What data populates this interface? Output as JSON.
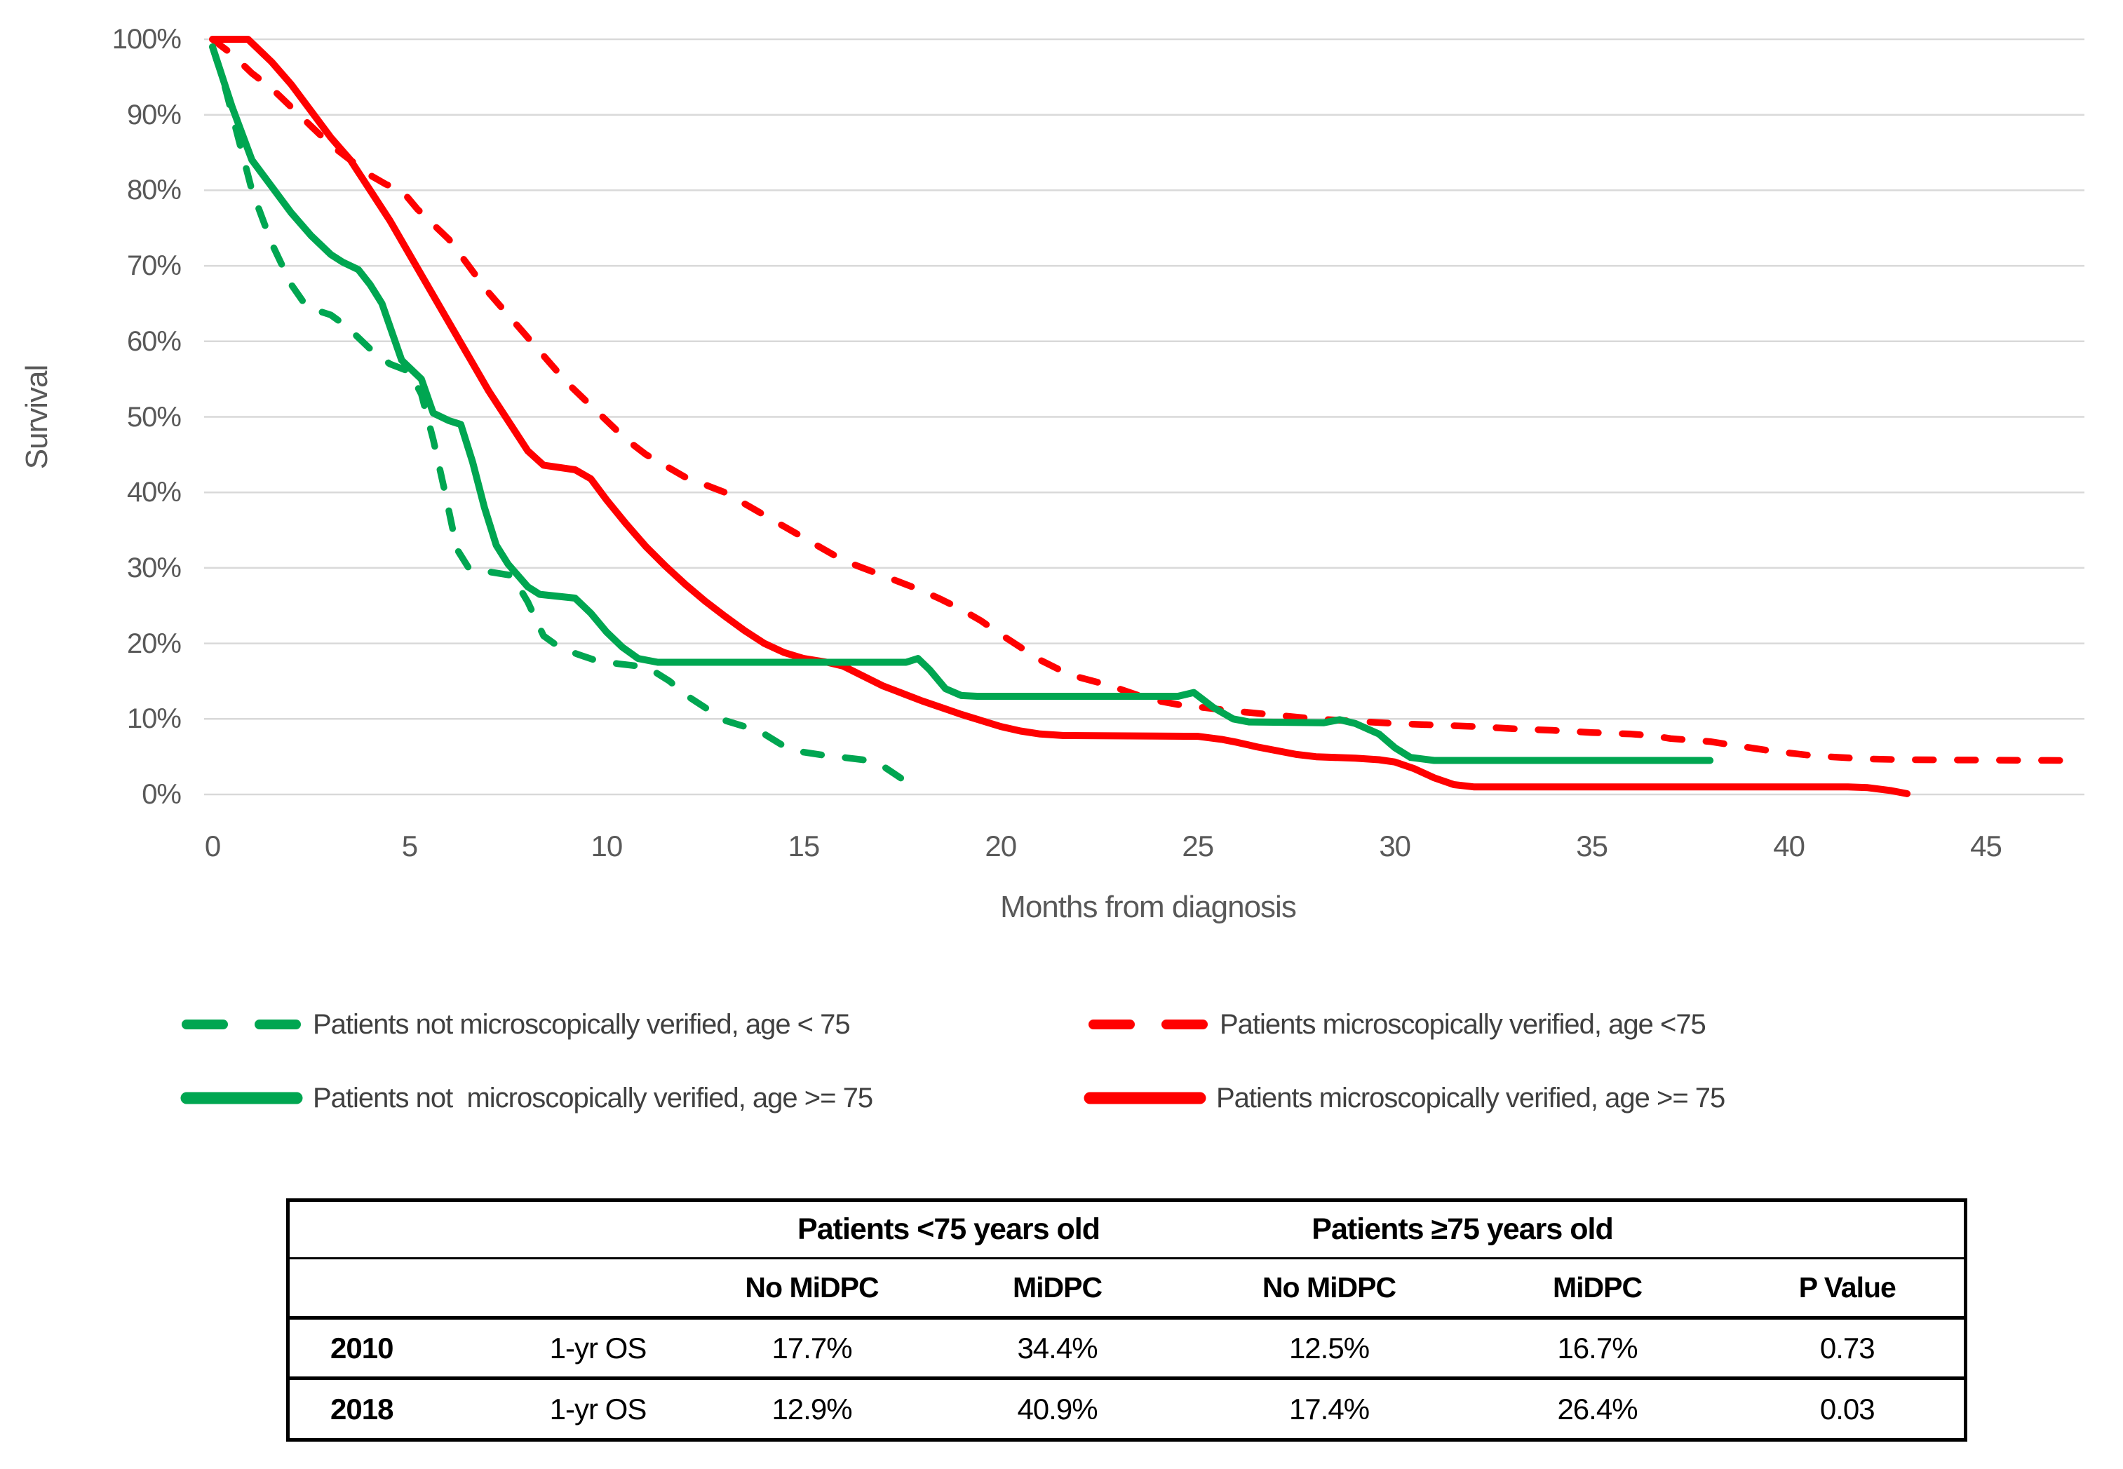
{
  "accent_colors": {
    "green": "#00A651",
    "red": "#FF0000",
    "grid": "#D9D9D9",
    "axis_text": "#595959",
    "legend_text": "#404040"
  },
  "chart_data": {
    "type": "line",
    "title": "",
    "xlabel": "Months from diagnosis",
    "ylabel": "Survival",
    "xlim": [
      0,
      47.5
    ],
    "ylim": [
      0,
      100
    ],
    "grid": true,
    "legend_position": "below",
    "xticks": [
      {
        "v": 0,
        "label": "0"
      },
      {
        "v": 5,
        "label": "5"
      },
      {
        "v": 10,
        "label": "10"
      },
      {
        "v": 15,
        "label": "15"
      },
      {
        "v": 20,
        "label": "20"
      },
      {
        "v": 25,
        "label": "25"
      },
      {
        "v": 30,
        "label": "30"
      },
      {
        "v": 35,
        "label": "35"
      },
      {
        "v": 40,
        "label": "40"
      },
      {
        "v": 45,
        "label": "45"
      }
    ],
    "yticks": [
      {
        "v": 0,
        "label": "0%"
      },
      {
        "v": 10,
        "label": "10%"
      },
      {
        "v": 20,
        "label": "20%"
      },
      {
        "v": 30,
        "label": "30%"
      },
      {
        "v": 40,
        "label": "40%"
      },
      {
        "v": 50,
        "label": "50%"
      },
      {
        "v": 60,
        "label": "60%"
      },
      {
        "v": 70,
        "label": "70%"
      },
      {
        "v": 80,
        "label": "80%"
      },
      {
        "v": 90,
        "label": "90%"
      },
      {
        "v": 100,
        "label": "100%"
      }
    ],
    "series": [
      {
        "key": "red-dashed",
        "name": "Patients microscopically verified, age <75",
        "color": "#FF0000",
        "dashed": true,
        "width": 9.5,
        "points": [
          [
            0,
            100
          ],
          [
            0.5,
            98
          ],
          [
            1,
            95.5
          ],
          [
            1.5,
            93.5
          ],
          [
            2,
            91
          ],
          [
            2.5,
            88.5
          ],
          [
            3,
            86
          ],
          [
            3.5,
            84
          ],
          [
            4,
            82
          ],
          [
            4.4,
            80.8
          ],
          [
            4.8,
            80
          ],
          [
            5.2,
            77.5
          ],
          [
            5.5,
            76
          ],
          [
            6,
            73.5
          ],
          [
            6.5,
            70
          ],
          [
            7,
            66.5
          ],
          [
            7.5,
            63.5
          ],
          [
            8,
            60.5
          ],
          [
            8.5,
            57.5
          ],
          [
            9,
            54.5
          ],
          [
            9.5,
            52
          ],
          [
            10,
            49.5
          ],
          [
            10.5,
            47
          ],
          [
            11,
            45
          ],
          [
            11.5,
            43.5
          ],
          [
            12,
            42
          ],
          [
            12.5,
            41
          ],
          [
            13,
            40
          ],
          [
            13.5,
            38.5
          ],
          [
            14,
            37
          ],
          [
            14.5,
            35.5
          ],
          [
            15,
            34
          ],
          [
            15.5,
            32.5
          ],
          [
            16,
            31
          ],
          [
            16.5,
            30
          ],
          [
            17,
            29
          ],
          [
            17.5,
            28
          ],
          [
            18,
            27
          ],
          [
            18.5,
            25.8
          ],
          [
            19,
            24.5
          ],
          [
            19.5,
            23
          ],
          [
            20,
            21.2
          ],
          [
            20.5,
            19.5
          ],
          [
            21,
            17.8
          ],
          [
            21.5,
            16.5
          ],
          [
            22,
            15.5
          ],
          [
            22.5,
            14.8
          ],
          [
            23,
            14
          ],
          [
            23.5,
            13.1
          ],
          [
            24,
            12.4
          ],
          [
            24.5,
            11.9
          ],
          [
            25,
            11.6
          ],
          [
            26,
            11
          ],
          [
            27,
            10.5
          ],
          [
            28,
            10
          ],
          [
            29,
            9.7
          ],
          [
            30,
            9.4
          ],
          [
            31,
            9.2
          ],
          [
            32,
            9
          ],
          [
            33,
            8.7
          ],
          [
            34,
            8.5
          ],
          [
            35,
            8.2
          ],
          [
            36,
            8
          ],
          [
            36.5,
            7.8
          ],
          [
            37,
            7.4
          ],
          [
            38,
            7
          ],
          [
            38.5,
            6.6
          ],
          [
            39,
            6.2
          ],
          [
            39.5,
            5.8
          ],
          [
            40,
            5.5
          ],
          [
            40.5,
            5.2
          ],
          [
            41,
            5
          ],
          [
            42,
            4.7
          ],
          [
            43,
            4.6
          ],
          [
            47,
            4.5
          ]
        ]
      },
      {
        "key": "green-dashed",
        "name": "Patients not microscopically verified, age < 75",
        "color": "#00A651",
        "dashed": true,
        "width": 9.5,
        "points": [
          [
            0,
            99
          ],
          [
            0.3,
            94
          ],
          [
            0.6,
            88
          ],
          [
            1,
            80
          ],
          [
            1.5,
            73
          ],
          [
            2,
            67.5
          ],
          [
            2.4,
            64.5
          ],
          [
            3,
            63.5
          ],
          [
            3.4,
            62
          ],
          [
            4,
            59
          ],
          [
            4.5,
            57
          ],
          [
            5,
            56
          ],
          [
            5.3,
            53
          ],
          [
            5.6,
            47
          ],
          [
            5.9,
            40
          ],
          [
            6.2,
            32.5
          ],
          [
            6.5,
            30
          ],
          [
            7,
            29.5
          ],
          [
            7.6,
            29
          ],
          [
            8,
            25.5
          ],
          [
            8.4,
            21
          ],
          [
            8.8,
            19.5
          ],
          [
            9.3,
            18.5
          ],
          [
            9.7,
            17.8
          ],
          [
            10.3,
            17.3
          ],
          [
            10.8,
            17
          ],
          [
            11.2,
            16.3
          ],
          [
            11.6,
            15
          ],
          [
            12,
            13.2
          ],
          [
            12.5,
            11.5
          ],
          [
            13,
            9.8
          ],
          [
            13.5,
            9
          ],
          [
            14,
            8
          ],
          [
            14.5,
            6.4
          ],
          [
            15,
            5.6
          ],
          [
            15.5,
            5.2
          ],
          [
            16,
            4.9
          ],
          [
            16.5,
            4.6
          ],
          [
            17,
            3.8
          ],
          [
            17.4,
            2.4
          ],
          [
            17.8,
            1
          ]
        ]
      },
      {
        "key": "red-solid",
        "name": "Patients microscopically verified, age >= 75",
        "color": "#FF0000",
        "dashed": false,
        "width": 10,
        "points": [
          [
            0,
            100
          ],
          [
            0.9,
            100
          ],
          [
            1.5,
            97
          ],
          [
            2,
            94
          ],
          [
            2.5,
            90.5
          ],
          [
            3,
            87
          ],
          [
            3.5,
            84
          ],
          [
            4,
            80
          ],
          [
            4.5,
            76
          ],
          [
            5,
            71.5
          ],
          [
            5.5,
            67
          ],
          [
            6,
            62.5
          ],
          [
            6.5,
            58
          ],
          [
            7,
            53.5
          ],
          [
            7.5,
            49.5
          ],
          [
            8,
            45.5
          ],
          [
            8.4,
            43.6
          ],
          [
            9.2,
            43
          ],
          [
            9.6,
            41.8
          ],
          [
            10,
            39
          ],
          [
            10.5,
            35.8
          ],
          [
            11,
            32.8
          ],
          [
            11.5,
            30.2
          ],
          [
            12,
            27.8
          ],
          [
            12.5,
            25.6
          ],
          [
            13,
            23.6
          ],
          [
            13.5,
            21.7
          ],
          [
            14,
            20
          ],
          [
            14.5,
            18.8
          ],
          [
            15,
            18
          ],
          [
            15.6,
            17.5
          ],
          [
            16,
            17
          ],
          [
            16.5,
            15.7
          ],
          [
            17,
            14.4
          ],
          [
            17.5,
            13.4
          ],
          [
            18,
            12.4
          ],
          [
            18.5,
            11.5
          ],
          [
            19,
            10.6
          ],
          [
            19.5,
            9.8
          ],
          [
            20,
            9
          ],
          [
            20.5,
            8.4
          ],
          [
            21,
            8
          ],
          [
            21.6,
            7.8
          ],
          [
            25,
            7.7
          ],
          [
            25.6,
            7.3
          ],
          [
            26,
            6.9
          ],
          [
            26.5,
            6.3
          ],
          [
            27,
            5.8
          ],
          [
            27.5,
            5.3
          ],
          [
            28,
            5
          ],
          [
            29,
            4.8
          ],
          [
            29.6,
            4.6
          ],
          [
            30,
            4.3
          ],
          [
            30.5,
            3.4
          ],
          [
            31,
            2.2
          ],
          [
            31.5,
            1.3
          ],
          [
            32,
            1
          ],
          [
            41.5,
            1
          ],
          [
            42,
            0.9
          ],
          [
            42.6,
            0.5
          ],
          [
            43,
            0.1
          ]
        ]
      },
      {
        "key": "green-solid",
        "name": "Patients not  microscopically verified, age >= 75",
        "color": "#00A651",
        "dashed": false,
        "width": 10,
        "points": [
          [
            0,
            99
          ],
          [
            0.5,
            91
          ],
          [
            1,
            84
          ],
          [
            1.5,
            80.5
          ],
          [
            2,
            77
          ],
          [
            2.5,
            74
          ],
          [
            3,
            71.5
          ],
          [
            3.3,
            70.5
          ],
          [
            3.7,
            69.5
          ],
          [
            4,
            67.5
          ],
          [
            4.3,
            65
          ],
          [
            4.8,
            57.5
          ],
          [
            5,
            56.5
          ],
          [
            5.3,
            55
          ],
          [
            5.6,
            50.5
          ],
          [
            6,
            49.5
          ],
          [
            6.3,
            49
          ],
          [
            6.6,
            44
          ],
          [
            6.9,
            38
          ],
          [
            7.2,
            33
          ],
          [
            7.5,
            30.5
          ],
          [
            8,
            27.5
          ],
          [
            8.3,
            26.5
          ],
          [
            9.2,
            26
          ],
          [
            9.6,
            24
          ],
          [
            10,
            21.5
          ],
          [
            10.4,
            19.5
          ],
          [
            10.8,
            18
          ],
          [
            11.3,
            17.5
          ],
          [
            17.6,
            17.5
          ],
          [
            17.9,
            18
          ],
          [
            18.2,
            16.5
          ],
          [
            18.6,
            14
          ],
          [
            19,
            13.1
          ],
          [
            19.4,
            13
          ],
          [
            24.5,
            13
          ],
          [
            24.9,
            13.5
          ],
          [
            25.4,
            11.5
          ],
          [
            25.9,
            10
          ],
          [
            26.3,
            9.6
          ],
          [
            28.2,
            9.5
          ],
          [
            28.6,
            9.9
          ],
          [
            29,
            9.4
          ],
          [
            29.6,
            8
          ],
          [
            30,
            6.2
          ],
          [
            30.4,
            4.9
          ],
          [
            31,
            4.5
          ],
          [
            38,
            4.5
          ]
        ]
      }
    ]
  },
  "legend": {
    "items": [
      {
        "series": "green-dashed",
        "label": "Patients not microscopically verified, age < 75"
      },
      {
        "series": "red-dashed",
        "label": "Patients microscopically verified, age <75"
      },
      {
        "series": "green-solid",
        "label": "Patients not  microscopically verified, age >= 75"
      },
      {
        "series": "red-solid",
        "label": "Patients microscopically verified, age >= 75"
      }
    ]
  },
  "table": {
    "group_headers": [
      {
        "label": "Patients <75 years old"
      },
      {
        "label": "Patients ≥75 years old"
      }
    ],
    "sub_headers": [
      "No MiDPC",
      "MiDPC",
      "No MiDPC",
      "MiDPC",
      "P Value"
    ],
    "rows": [
      {
        "year": "2010",
        "measure": "1-yr OS",
        "values": [
          "17.7%",
          "34.4%",
          "12.5%",
          "16.7%",
          "0.73"
        ]
      },
      {
        "year": "2018",
        "measure": "1-yr OS",
        "values": [
          "12.9%",
          "40.9%",
          "17.4%",
          "26.4%",
          "0.03"
        ]
      }
    ]
  }
}
